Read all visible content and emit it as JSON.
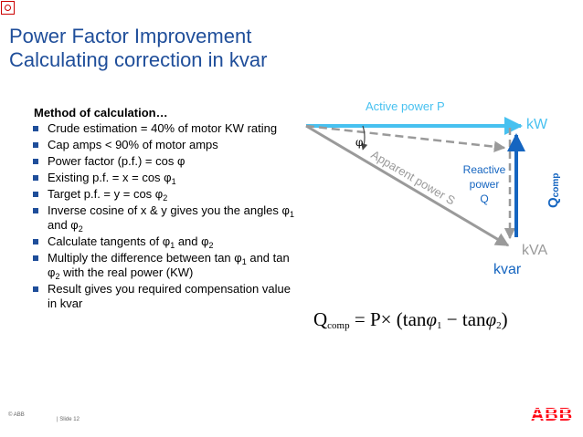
{
  "title_line1": "Power Factor Improvement",
  "title_line2": "Calculating correction in kvar",
  "method_heading": "Method of calculation…",
  "bullets": [
    {
      "pre": "Crude estimation = 40% of motor KW rating"
    },
    {
      "pre": "Cap amps < 90% of motor amps"
    },
    {
      "pre": "Power factor (p.f.) = cos φ"
    },
    {
      "pre": "Existing p.f. = x = cos φ",
      "sub": "1"
    },
    {
      "pre": "Target p.f. = y = cos φ",
      "sub": "2"
    },
    {
      "pre": "Inverse cosine of x & y gives you the angles φ",
      "sub": "1",
      "mid": " and φ",
      "sub2": "2"
    },
    {
      "pre": "Calculate tangents of φ",
      "sub": "1",
      "mid": " and φ",
      "sub2": "2"
    },
    {
      "pre": "Multiply the difference between tan φ",
      "sub": "1",
      "mid": " and tan φ",
      "sub2": "2",
      "post": " with the real power (KW)"
    },
    {
      "pre": "Result gives you required compensation value in kvar"
    }
  ],
  "diagram": {
    "active_power": "Active power P",
    "kw": "kW",
    "phi": "φ",
    "apparent_power": "Apparent power S",
    "reactive_l1": "Reactive",
    "reactive_l2": "power",
    "reactive_l3": "Q",
    "q_comp_q": "Q",
    "q_comp_sub": "comp",
    "kva": "kVA",
    "kvar": "kvar"
  },
  "formula": {
    "lhs": "Q",
    "lhs_sub": "comp",
    "eq": " = P× (tan",
    "phi": "φ",
    "s1": "1",
    "minus": " − tan",
    "s2": "2",
    "close": ")"
  },
  "footer": {
    "copyright": "© ABB",
    "slide": "| Slide 12",
    "logo": "ABB"
  },
  "colors": {
    "title": "#1f4e9a",
    "light_blue": "#47c1f0",
    "dark_blue": "#1565c0",
    "gray": "#9a9a9a",
    "abb_red": "#ff000f"
  }
}
